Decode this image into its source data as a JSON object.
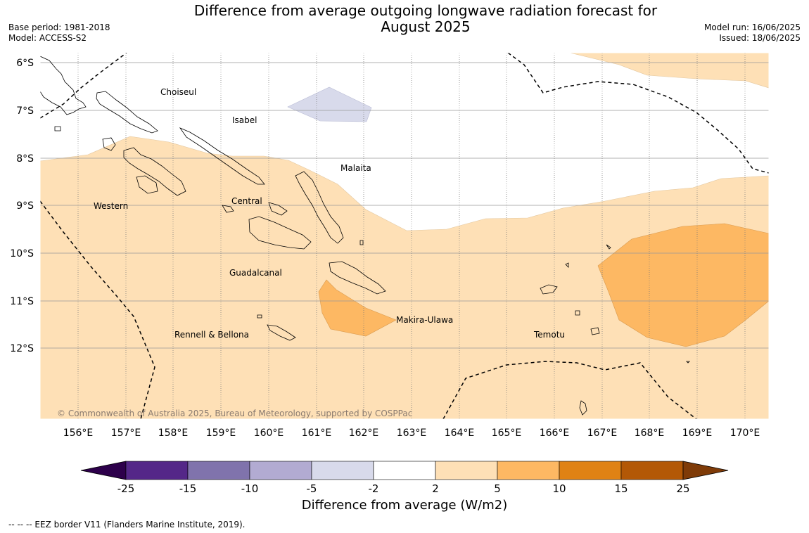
{
  "header": {
    "title_line1": "Difference from average outgoing longwave radiation forecast for",
    "title_line2": "August 2025",
    "base_period": "Base period: 1981-2018",
    "model": "Model: ACCESS-S2",
    "model_run": "Model run: 16/06/2025",
    "issued": "Issued: 18/06/2025"
  },
  "map": {
    "copyright": "© Commonwealth of Australia 2025, Bureau of Meteorology, supported by COSPPac",
    "lon_ticks": [
      "156°E",
      "157°E",
      "158°E",
      "159°E",
      "160°E",
      "161°E",
      "162°E",
      "163°E",
      "164°E",
      "165°E",
      "166°E",
      "167°E",
      "168°E",
      "169°E",
      "170°E"
    ],
    "lat_ticks": [
      "6°S",
      "7°S",
      "8°S",
      "9°S",
      "10°S",
      "11°S",
      "12°S"
    ],
    "regions": [
      "Choiseul",
      "Isabel",
      "Malaita",
      "Western",
      "Central",
      "Guadalcanal",
      "Makira-Ulawa",
      "Rennell & Bellona",
      "Temotu"
    ]
  },
  "colorbar": {
    "label": "Difference from average (W/m2)",
    "ticks": [
      "-25",
      "-15",
      "-10",
      "-5",
      "-2",
      "2",
      "5",
      "10",
      "15",
      "25"
    ],
    "colors": [
      "#542788",
      "#8073ac",
      "#b2abd2",
      "#d8daeb",
      "#ffffff",
      "#fee0b6",
      "#fdb863",
      "#e08214",
      "#b35806"
    ],
    "under_color": "#2d004b",
    "over_color": "#7f3b08"
  },
  "footnote": "--  --  -- EEZ border V11 (Flanders Marine Institute, 2019)."
}
